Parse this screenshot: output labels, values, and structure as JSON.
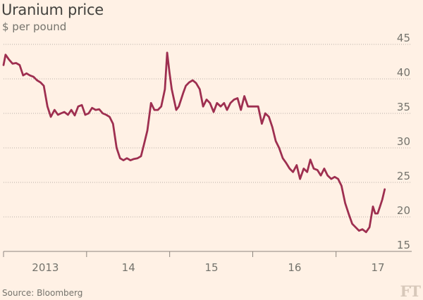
{
  "chart_data": {
    "type": "line",
    "title": "Uranium price",
    "subtitle": "$ per pound",
    "source": "Source: Bloomberg",
    "logo": "FT",
    "x_axis": {
      "type": "date",
      "range": [
        "2012-07-01",
        "2017-02-07"
      ],
      "tick_dates": [
        "2012-07-01",
        "2013-07-01",
        "2014-07-01",
        "2015-07-01",
        "2016-07-01"
      ],
      "label_dates": [
        "2013-01-01",
        "2014-01-01",
        "2015-01-01",
        "2016-01-01",
        "2017-01-01"
      ],
      "tick_labels": [
        "2013",
        "14",
        "15",
        "16",
        "17"
      ]
    },
    "ylim": [
      15,
      45
    ],
    "yticks": [
      15,
      20,
      25,
      30,
      35,
      40,
      45
    ],
    "grid": true,
    "colors": {
      "series": "#9e2f50",
      "background": "#fff1e5"
    },
    "series": [
      {
        "x": [
          "2012-07-01",
          "2012-07-10",
          "2012-07-25",
          "2012-08-10",
          "2012-08-25",
          "2012-09-10",
          "2012-09-25",
          "2012-10-10",
          "2012-10-25",
          "2012-11-10",
          "2012-11-25",
          "2012-12-10",
          "2012-12-25",
          "2013-01-10",
          "2013-01-25",
          "2013-02-10",
          "2013-02-25",
          "2013-03-10",
          "2013-03-25",
          "2013-04-10",
          "2013-04-25",
          "2013-05-10",
          "2013-05-25",
          "2013-06-10",
          "2013-06-25",
          "2013-07-10",
          "2013-07-25",
          "2013-08-10",
          "2013-08-25",
          "2013-09-10",
          "2013-09-25",
          "2013-10-10",
          "2013-10-25",
          "2013-11-10",
          "2013-11-25",
          "2013-12-10",
          "2013-12-25",
          "2014-01-10",
          "2014-01-25",
          "2014-02-10",
          "2014-02-25",
          "2014-03-10",
          "2014-03-25",
          "2014-04-10",
          "2014-04-25",
          "2014-05-10",
          "2014-05-25",
          "2014-06-10",
          "2014-06-20",
          "2014-06-30",
          "2014-07-10",
          "2014-07-20",
          "2014-07-30",
          "2014-08-10",
          "2014-08-20",
          "2014-08-30",
          "2014-09-10",
          "2014-09-25",
          "2014-10-10",
          "2014-10-25",
          "2014-11-10",
          "2014-11-25",
          "2014-12-10",
          "2014-12-25",
          "2015-01-10",
          "2015-01-25",
          "2015-02-10",
          "2015-02-25",
          "2015-03-10",
          "2015-03-25",
          "2015-04-10",
          "2015-04-25",
          "2015-05-10",
          "2015-05-25",
          "2015-06-10",
          "2015-06-25",
          "2015-07-10",
          "2015-07-25",
          "2015-08-10",
          "2015-08-25",
          "2015-09-10",
          "2015-09-25",
          "2015-10-10",
          "2015-10-25",
          "2015-11-10",
          "2015-11-25",
          "2015-12-10",
          "2015-12-25",
          "2016-01-10",
          "2016-01-25",
          "2016-02-10",
          "2016-02-25",
          "2016-03-10",
          "2016-03-25",
          "2016-04-10",
          "2016-04-25",
          "2016-05-10",
          "2016-05-25",
          "2016-06-10",
          "2016-06-25",
          "2016-07-10",
          "2016-07-25",
          "2016-08-10",
          "2016-08-25",
          "2016-09-10",
          "2016-09-25",
          "2016-10-10",
          "2016-10-25",
          "2016-11-10",
          "2016-11-25",
          "2016-12-10",
          "2016-12-20",
          "2016-12-31",
          "2017-01-10",
          "2017-01-20",
          "2017-01-31"
        ],
        "y": [
          42.0,
          43.5,
          42.8,
          42.2,
          42.3,
          42.0,
          40.5,
          40.8,
          40.5,
          40.3,
          39.8,
          39.5,
          39.0,
          36.0,
          34.5,
          35.5,
          34.8,
          35.0,
          35.2,
          34.8,
          35.5,
          34.7,
          36.0,
          36.2,
          34.8,
          35.0,
          35.8,
          35.5,
          35.6,
          35.0,
          34.8,
          34.5,
          33.5,
          30.0,
          28.5,
          28.2,
          28.5,
          28.2,
          28.4,
          28.5,
          28.8,
          30.5,
          32.5,
          36.5,
          35.5,
          35.5,
          36.0,
          38.5,
          43.8,
          41.0,
          38.5,
          37.0,
          35.5,
          36.0,
          37.0,
          38.0,
          39.0,
          39.5,
          39.8,
          39.4,
          38.5,
          36.0,
          37.0,
          36.5,
          35.2,
          36.5,
          36.0,
          36.5,
          35.5,
          36.5,
          37.0,
          37.2,
          35.5,
          37.5,
          36.0,
          36.0,
          36.0,
          36.0,
          33.5,
          35.0,
          34.5,
          33.0,
          31.0,
          30.0,
          28.5,
          27.8,
          27.0,
          26.5,
          27.5,
          25.5,
          27.0,
          26.5,
          28.3,
          27.0,
          26.8,
          26.0,
          27.0,
          26.0,
          25.5,
          25.8,
          25.5,
          24.5,
          22.0,
          20.5,
          19.0,
          18.5,
          18.0,
          18.2,
          17.8,
          18.5,
          21.5,
          20.5,
          20.5,
          21.5,
          22.5,
          24.0
        ]
      }
    ]
  }
}
